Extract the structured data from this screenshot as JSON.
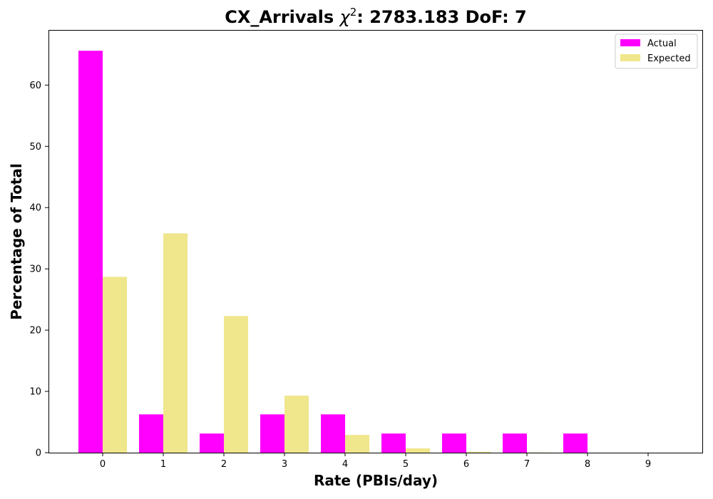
{
  "chart_data": {
    "type": "bar",
    "title_prefix": "CX_Arrivals ",
    "title_chi": "χ",
    "title_sup": "2",
    "title_suffix": ": 2783.183 DoF: 7",
    "xlabel": "Rate (PBIs/day)",
    "ylabel": "Percentage of Total",
    "categories": [
      "0",
      "1",
      "2",
      "3",
      "4",
      "5",
      "6",
      "7",
      "8",
      "9"
    ],
    "x_ticks": [
      "0",
      "1",
      "2",
      "3",
      "4",
      "5",
      "6",
      "7",
      "8",
      "9"
    ],
    "y_ticks": [
      "0",
      "10",
      "20",
      "30",
      "40",
      "50",
      "60"
    ],
    "ylim": [
      0,
      69
    ],
    "grid": false,
    "legend_position": "top-right",
    "series": [
      {
        "name": "Actual",
        "color": "#ff00ff",
        "values": [
          65.6,
          6.25,
          3.125,
          6.25,
          6.25,
          3.125,
          3.125,
          3.125,
          3.125,
          0
        ]
      },
      {
        "name": "Expected",
        "color": "#f0e68c",
        "values": [
          28.7,
          35.8,
          22.3,
          9.3,
          2.9,
          0.7,
          0.15,
          0.03,
          0.0,
          0.0
        ]
      }
    ]
  }
}
